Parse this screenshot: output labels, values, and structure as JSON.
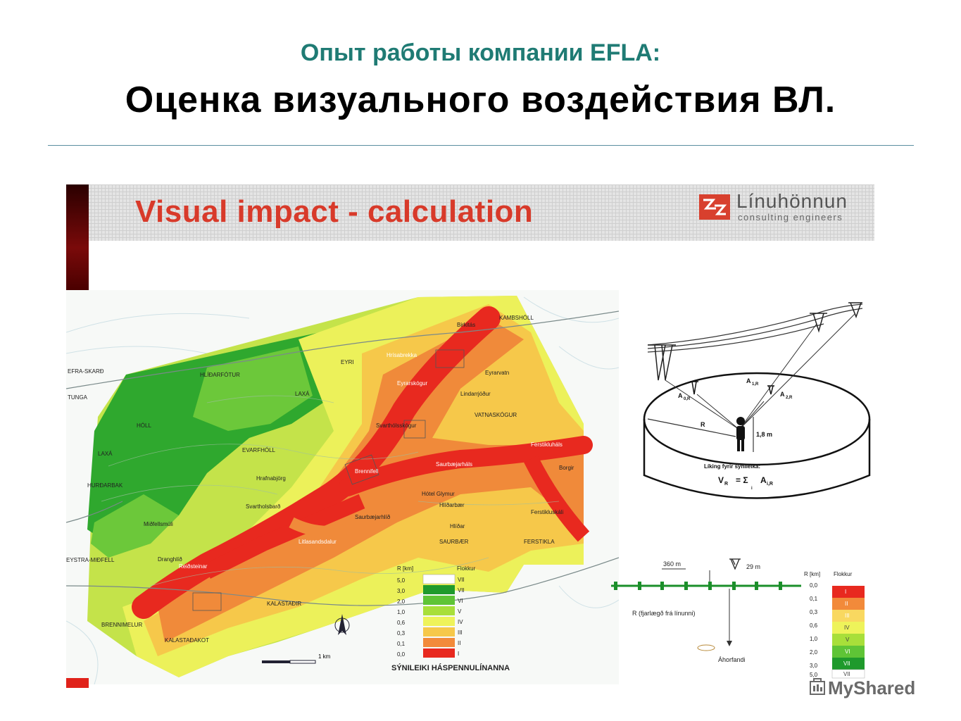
{
  "header": {
    "subtitle": "Опыт работы компании EFLA:",
    "title": "Оценка визуального воздействия ВЛ."
  },
  "banner": {
    "title": "Visual impact - calculation",
    "logo_name": "Línuhönnun",
    "logo_sub": "consulting engineers"
  },
  "map": {
    "place_labels": [
      "EFRA-SKARÐ",
      "TUNGA",
      "HÓLL",
      "LAXÁ",
      "HURÐARBAK",
      "HLÍÐARFÓTUR",
      "LAXÁ",
      "EYRI",
      "EVARFHÓLL",
      "Hrísabrekka",
      "Birkitás",
      "KAMBSHÓLL",
      "Eyrarskógur",
      "Eyrarvatn",
      "Lindarrjóður",
      "VATNASKÓGUR",
      "Svarthólsskógur",
      "Brennifell",
      "Ferstikluháls",
      "Borgir",
      "Hótel Glymur",
      "Hlíðarbær",
      "Saurbæjarháls",
      "Saurbæjarhlíð",
      "Hlíðar",
      "SAURBÆR",
      "FERSTIKLA",
      "Ferstikluskáli",
      "Hrafnabjörg",
      "Svartholsbarð",
      "Miðfellsmúli",
      "Dranghlíð",
      "Reiðsteinar",
      "Litlasandsdalur",
      "KALASTAÐIR",
      "BRENNIMELUR",
      "KALASTAÐAKOT",
      "EYSTRA-MIÐFELL"
    ],
    "scale_label": "1 km",
    "north": "N"
  },
  "map_legend": {
    "title": "SÝNILEIKI HÁSPENNULÍNANNA",
    "col_r": "R [km]",
    "col_flokkur": "Flokkur",
    "rows": [
      {
        "r": "5,0",
        "cls": "VII",
        "color": "#ffffff"
      },
      {
        "r": "3,0",
        "cls": "VII",
        "color": "#1f9a2c"
      },
      {
        "r": "2,0",
        "cls": "VI",
        "color": "#5fc436"
      },
      {
        "r": "1,0",
        "cls": "V",
        "color": "#a8df3a"
      },
      {
        "r": "0,6",
        "cls": "IV",
        "color": "#eef35a"
      },
      {
        "r": "0,3",
        "cls": "III",
        "color": "#f6c84a"
      },
      {
        "r": "0,1",
        "cls": "II",
        "color": "#f28a3a"
      },
      {
        "r": "0,0",
        "cls": "I",
        "color": "#e8291f"
      }
    ]
  },
  "diagram": {
    "a0r": "A",
    "a0r_sub": "0,R",
    "a1r": "A",
    "a1r_sub": "1,R",
    "a2r": "A",
    "a2r_sub": "2,R",
    "r": "R",
    "height": "1,8 m",
    "formula_title": "Líking fyrir sýnileika:",
    "formula_v": "V",
    "formula_v_sub": "R",
    "formula_eq": "= Σ",
    "formula_a": "A",
    "formula_a_sub": "i,R",
    "formula_i": "i"
  },
  "line_diagram": {
    "span": "360 m",
    "tower": "29 m",
    "r_label": "R (fjarlægð frá línunni)",
    "observer": "Áhorfandi"
  },
  "right_legend": {
    "col_r": "R [km]",
    "col_flokkur": "Flokkur",
    "r_values": [
      "0,0",
      "0,1",
      "0,3",
      "0,6",
      "1,0",
      "2,0",
      "3,0",
      "5,0"
    ],
    "classes": [
      {
        "cls": "I",
        "color": "#e8291f"
      },
      {
        "cls": "II",
        "color": "#f28a3a"
      },
      {
        "cls": "III",
        "color": "#f9d860"
      },
      {
        "cls": "IV",
        "color": "#eef35a"
      },
      {
        "cls": "V",
        "color": "#a8df3a"
      },
      {
        "cls": "VI",
        "color": "#5fc436"
      },
      {
        "cls": "VII",
        "color": "#1f9a2c"
      },
      {
        "cls": "VII",
        "color": "#ffffff"
      }
    ]
  },
  "watermark": "MyShared"
}
